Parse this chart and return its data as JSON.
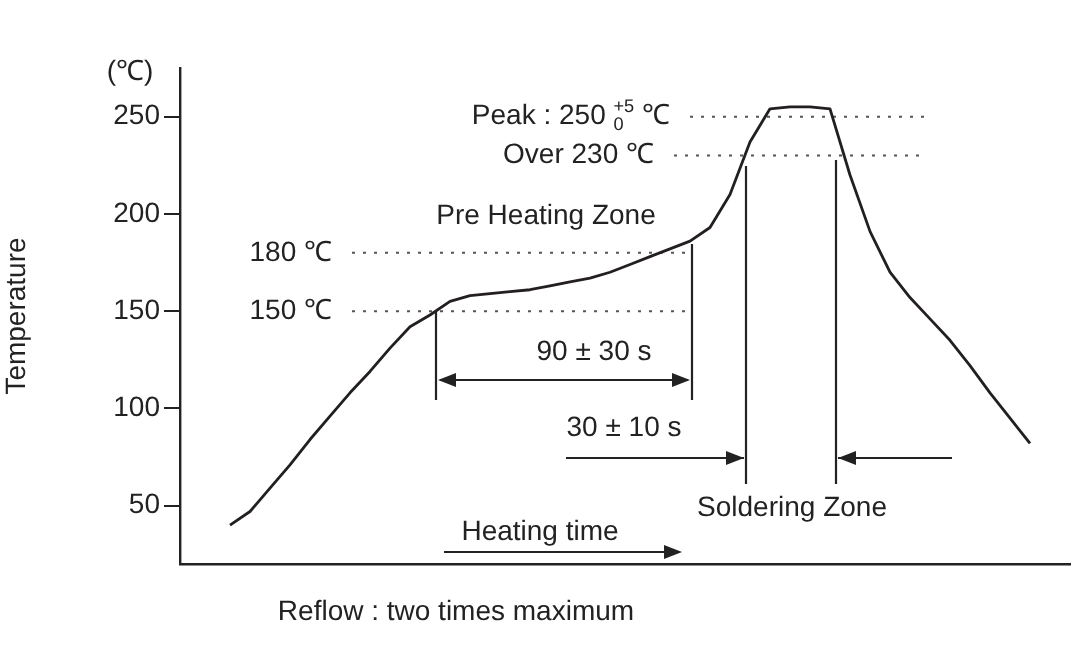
{
  "chart_data": {
    "type": "line",
    "ylabel": "Temperature",
    "categories": [
      null,
      null,
      null,
      null,
      null,
      null,
      null,
      null,
      null,
      null,
      null,
      null,
      null,
      null,
      null,
      null,
      null,
      null,
      null,
      null,
      null,
      null,
      null,
      null,
      null,
      null,
      null,
      null,
      null,
      null,
      null,
      null,
      null,
      null,
      null,
      null,
      null,
      null,
      null,
      null,
      null
    ],
    "series": [
      {
        "color": "#231f20",
        "values": [
          40,
          47,
          59,
          71,
          84,
          96,
          108,
          119,
          131,
          142,
          148,
          155,
          158,
          159,
          160,
          161,
          163,
          165,
          167,
          170,
          174,
          178,
          182,
          186,
          193,
          210,
          237,
          254,
          255,
          255,
          254,
          220,
          191,
          170,
          157,
          146,
          135,
          122,
          108,
          95,
          82
        ]
      }
    ],
    "ylim": [
      20,
      275
    ],
    "yticks": [
      50,
      100,
      150,
      200,
      250
    ],
    "grid": false,
    "legend": false,
    "marker": "none",
    "line_style": "solid",
    "ref_lines": [
      {
        "axis": "y",
        "value": 250,
        "label": "Peak : 250 $^{+5}$$_{0}$ ℃",
        "color": "#555555",
        "line_style": "dotted"
      },
      {
        "axis": "y",
        "value": 230,
        "label": "Over 230 ℃",
        "color": "#555555",
        "line_style": "dotted"
      },
      {
        "axis": "y",
        "value": 180,
        "label": "180 ℃",
        "color": "#555555",
        "line_style": "dotted"
      },
      {
        "axis": "y",
        "value": 150,
        "label": "150 ℃",
        "color": "#555555",
        "line_style": "dotted"
      }
    ],
    "annotations": [
      "(℃)",
      "Pre Heating Zone",
      "90 ± 30 s",
      "30 ± 10 s",
      "Soldering Zone",
      "Heating time",
      "Reflow : two times maximum"
    ]
  }
}
